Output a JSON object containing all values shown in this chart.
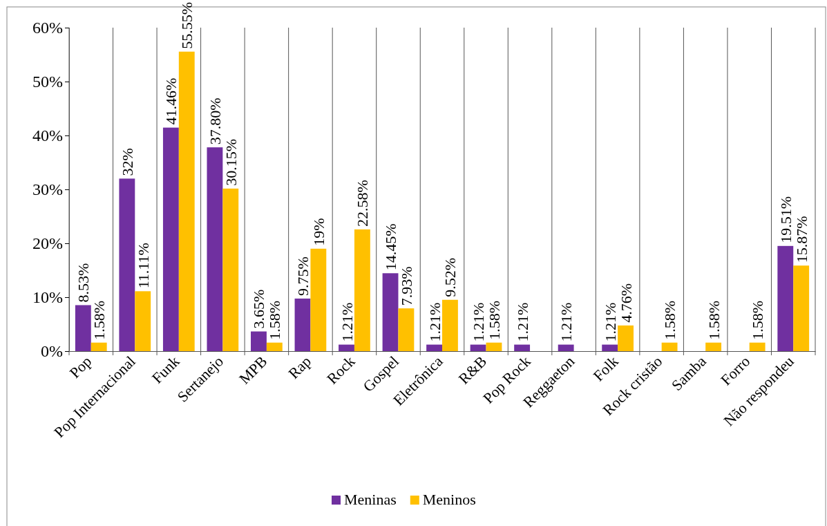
{
  "chart_data": {
    "type": "bar",
    "categories": [
      "Pop",
      "Pop Internacional",
      "Funk",
      "Sertanejo",
      "MPB",
      "Rap",
      "Rock",
      "Gospel",
      "Eletrônica",
      "R&B",
      "Pop Rock",
      "Reggaeton",
      "Folk",
      "Rock cristão",
      "Samba",
      "Forro",
      "Não respondeu"
    ],
    "series": [
      {
        "name": "Meninas",
        "color": "#7030a0",
        "values": [
          8.53,
          32,
          41.46,
          37.8,
          3.65,
          9.75,
          1.21,
          14.45,
          1.21,
          1.21,
          1.21,
          1.21,
          1.21,
          null,
          null,
          null,
          19.51
        ],
        "value_labels": [
          "8.53%",
          "32%",
          "41.46%",
          "37.80%",
          "3.65%",
          "9.75%",
          "1.21%",
          "14.45%",
          "1.21%",
          "1.21%",
          "1.21%",
          "1.21%",
          "1.21%",
          null,
          null,
          null,
          "19.51%"
        ]
      },
      {
        "name": "Meninos",
        "color": "#ffc000",
        "values": [
          1.58,
          11.11,
          55.55,
          30.15,
          1.58,
          19,
          22.58,
          7.93,
          9.52,
          1.58,
          null,
          null,
          4.76,
          1.58,
          1.58,
          1.58,
          15.87
        ],
        "value_labels": [
          "1.58%",
          "11.11%",
          "55.55%",
          "30.15%",
          "1.58%",
          "19%",
          "22.58%",
          "7.93%",
          "9.52%",
          "1.58%",
          null,
          null,
          "4.76%",
          "1.58%",
          "1.58%",
          "1.58%",
          "15.87%"
        ]
      }
    ],
    "ylim": [
      0,
      60
    ],
    "yticks": [
      {
        "value": 0,
        "label": "0%"
      },
      {
        "value": 10,
        "label": "10%"
      },
      {
        "value": 20,
        "label": "20%"
      },
      {
        "value": 30,
        "label": "30%"
      },
      {
        "value": 40,
        "label": "40%"
      },
      {
        "value": 50,
        "label": "50%"
      },
      {
        "value": 60,
        "label": "60%"
      }
    ],
    "grid": "x",
    "legend": "bottom"
  }
}
